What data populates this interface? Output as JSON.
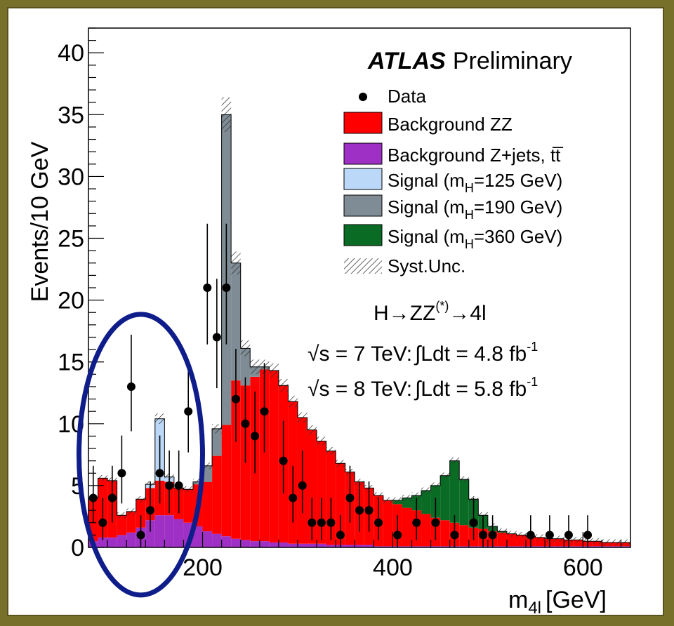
{
  "chart_data": {
    "type": "bar",
    "experiment": "ATLAS",
    "label": "Preliminary",
    "xlabel": "m",
    "xlabel_sub": "4l",
    "xlabel_unit": "[GeV]",
    "ylabel": "Events/10 GeV",
    "xlim": [
      80,
      650
    ],
    "ylim": [
      0,
      42
    ],
    "xticks": [
      200,
      400,
      600
    ],
    "yticks": [
      0,
      5,
      10,
      15,
      20,
      25,
      30,
      35,
      40
    ],
    "bin_width": 10,
    "bin_edges_start": 80,
    "series": [
      {
        "name": "Background Z+jets, tt̄",
        "color": "#9f30c5",
        "kind": "stack",
        "values": [
          0.5,
          0.8,
          0.8,
          1.0,
          1.2,
          1.6,
          2.2,
          2.6,
          2.6,
          2.3,
          2.0,
          1.7,
          1.3,
          1.1,
          0.9,
          0.7,
          0.6,
          0.5,
          0.5,
          0.4,
          0.4,
          0.3,
          0.3,
          0.3,
          0.3,
          0.2,
          0.2,
          0.2,
          0.2,
          0.2,
          0.1,
          0.1,
          0.1,
          0.1,
          0.1,
          0.1,
          0.1,
          0.1,
          0.1,
          0.1,
          0.1,
          0.1,
          0.1,
          0.1,
          0.1,
          0.1,
          0.1,
          0.1,
          0.1,
          0.1,
          0.1,
          0.1,
          0.1,
          0.1,
          0.1,
          0.1,
          0.1
        ]
      },
      {
        "name": "Background ZZ",
        "color": "#ff0000",
        "kind": "stack",
        "values": [
          3.5,
          4.8,
          4.6,
          1.6,
          1.7,
          2.3,
          2.6,
          2.8,
          2.7,
          2.5,
          2.7,
          3.4,
          4.0,
          6.3,
          9.0,
          12.8,
          12.5,
          13.3,
          13.9,
          13.9,
          12.7,
          11.5,
          10.2,
          9.2,
          8.3,
          7.6,
          6.6,
          5.9,
          5.1,
          4.6,
          4.1,
          3.7,
          3.4,
          3.1,
          2.9,
          2.6,
          2.3,
          2.1,
          1.9,
          1.7,
          1.5,
          1.4,
          1.2,
          1.1,
          1.0,
          0.9,
          0.8,
          0.7,
          0.6,
          0.6,
          0.5,
          0.5,
          0.4,
          0.4,
          0.3,
          0.3,
          0.3
        ]
      },
      {
        "name": "Signal (m_H=125 GeV)",
        "label_main": "Signal (m",
        "label_sub": "H",
        "label_rest": "=125 GeV)",
        "color": "#bcd8f8",
        "kind": "stack",
        "values": [
          0,
          0,
          0,
          0,
          0,
          0,
          0.3,
          5.0,
          0.4,
          0,
          0,
          0,
          0,
          0,
          0,
          0,
          0,
          0,
          0,
          0,
          0,
          0,
          0,
          0,
          0,
          0,
          0,
          0,
          0,
          0,
          0,
          0,
          0,
          0,
          0,
          0,
          0,
          0,
          0,
          0,
          0,
          0,
          0,
          0,
          0,
          0,
          0,
          0,
          0,
          0,
          0,
          0,
          0,
          0,
          0,
          0,
          0
        ]
      },
      {
        "name": "Signal (m_H=190 GeV)",
        "label_main": "Signal (m",
        "label_sub": "H",
        "label_rest": "=190 GeV)",
        "color": "#7f8c95",
        "kind": "stack",
        "values": [
          0,
          0,
          0,
          0,
          0,
          0,
          0,
          0,
          0,
          0,
          0,
          0.2,
          1.3,
          2.2,
          25.1,
          9.5,
          3.0,
          0.8,
          0.2,
          0,
          0,
          0,
          0,
          0,
          0,
          0,
          0,
          0,
          0,
          0,
          0,
          0,
          0,
          0,
          0,
          0,
          0,
          0,
          0,
          0,
          0,
          0,
          0,
          0,
          0,
          0,
          0,
          0,
          0,
          0,
          0,
          0,
          0,
          0,
          0,
          0,
          0
        ]
      },
      {
        "name": "Signal (m_H=360 GeV)",
        "label_main": "Signal (m",
        "label_sub": "H",
        "label_rest": "=360 GeV)",
        "color": "#0a6b25",
        "kind": "stack",
        "values": [
          0,
          0,
          0,
          0,
          0,
          0,
          0,
          0,
          0,
          0,
          0,
          0,
          0,
          0,
          0,
          0,
          0,
          0,
          0,
          0,
          0,
          0,
          0,
          0,
          0,
          0,
          0,
          0,
          0,
          0,
          0,
          0,
          0.3,
          0.8,
          1.2,
          1.9,
          2.6,
          3.6,
          5.0,
          3.7,
          2.3,
          1.1,
          0.4,
          0.1,
          0,
          0,
          0,
          0,
          0,
          0,
          0,
          0,
          0,
          0,
          0,
          0,
          0
        ]
      }
    ],
    "data": {
      "name": "Data",
      "points": [
        {
          "x": 85,
          "y": 4
        },
        {
          "x": 95,
          "y": 2
        },
        {
          "x": 105,
          "y": 4
        },
        {
          "x": 115,
          "y": 6
        },
        {
          "x": 125,
          "y": 13
        },
        {
          "x": 135,
          "y": 1
        },
        {
          "x": 145,
          "y": 3
        },
        {
          "x": 155,
          "y": 6
        },
        {
          "x": 165,
          "y": 5
        },
        {
          "x": 175,
          "y": 5
        },
        {
          "x": 185,
          "y": 11
        },
        {
          "x": 205,
          "y": 21
        },
        {
          "x": 215,
          "y": 17
        },
        {
          "x": 225,
          "y": 21
        },
        {
          "x": 235,
          "y": 12
        },
        {
          "x": 245,
          "y": 10
        },
        {
          "x": 255,
          "y": 9
        },
        {
          "x": 265,
          "y": 11
        },
        {
          "x": 285,
          "y": 7
        },
        {
          "x": 295,
          "y": 4
        },
        {
          "x": 305,
          "y": 5
        },
        {
          "x": 315,
          "y": 2
        },
        {
          "x": 325,
          "y": 2
        },
        {
          "x": 335,
          "y": 2
        },
        {
          "x": 345,
          "y": 1
        },
        {
          "x": 355,
          "y": 4
        },
        {
          "x": 365,
          "y": 3
        },
        {
          "x": 375,
          "y": 3
        },
        {
          "x": 385,
          "y": 2
        },
        {
          "x": 405,
          "y": 1
        },
        {
          "x": 425,
          "y": 2
        },
        {
          "x": 445,
          "y": 2
        },
        {
          "x": 465,
          "y": 1
        },
        {
          "x": 485,
          "y": 2
        },
        {
          "x": 495,
          "y": 1
        },
        {
          "x": 505,
          "y": 1
        },
        {
          "x": 545,
          "y": 1
        },
        {
          "x": 565,
          "y": 1
        },
        {
          "x": 585,
          "y": 1
        },
        {
          "x": 605,
          "y": 1
        }
      ]
    },
    "legend": {
      "position": "top-right",
      "entries": [
        {
          "label": "Data",
          "style": "marker"
        },
        {
          "label": "Background ZZ",
          "color": "#ff0000"
        },
        {
          "label": "Background Z+jets, tt̅",
          "color": "#9f30c5"
        },
        {
          "label_main": "Signal (m",
          "label_sub": "H",
          "label_rest": "=125 GeV)",
          "color": "#bcd8f8"
        },
        {
          "label_main": "Signal (m",
          "label_sub": "H",
          "label_rest": "=190 GeV)",
          "color": "#7f8c95"
        },
        {
          "label_main": "Signal (m",
          "label_sub": "H",
          "label_rest": "=360 GeV)",
          "color": "#0a6b25"
        },
        {
          "label": "Syst.Unc.",
          "style": "hatch"
        }
      ]
    },
    "annotations": {
      "process": "H→ZZ",
      "process_sup": "(*)",
      "process_end": "→4l",
      "line1_sqrt": "√s = 7 TeV:",
      "line1_int": "∫Ldt = 4.8 fb",
      "line1_sup": "-1",
      "line2_sqrt": "√s = 8 TeV:",
      "line2_int": "∫Ldt = 5.8 fb",
      "line2_sup": "-1"
    },
    "highlight": {
      "shape": "ellipse",
      "color": "#0f1d8a",
      "x_range": [
        80,
        190
      ],
      "y_range": [
        -5,
        20
      ]
    },
    "grid": false
  }
}
